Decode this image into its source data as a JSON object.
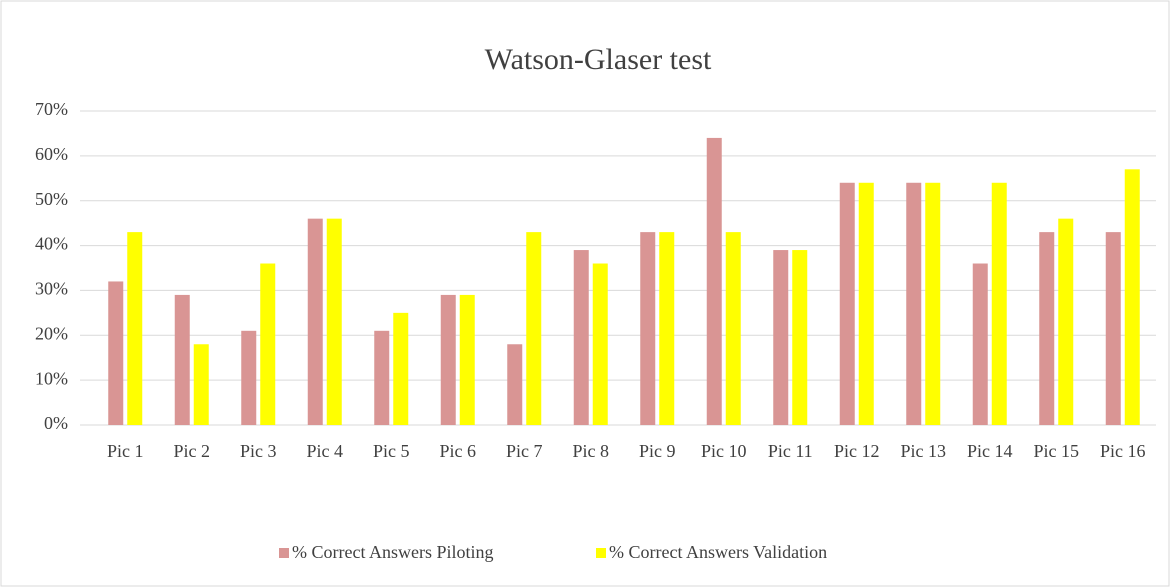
{
  "chart_data": {
    "type": "bar",
    "title": "Watson-Glaser test",
    "categories": [
      "Pic 1",
      "Pic 2",
      "Pic 3",
      "Pic 4",
      "Pic 5",
      "Pic 6",
      "Pic 7",
      "Pic 8",
      "Pic 9",
      "Pic 10",
      "Pic 11",
      "Pic 12",
      "Pic 13",
      "Pic 14",
      "Pic 15",
      "Pic 16"
    ],
    "series": [
      {
        "name": "% Correct Answers Piloting",
        "color": "#d99594",
        "values": [
          32,
          29,
          21,
          46,
          21,
          29,
          18,
          39,
          43,
          64,
          39,
          54,
          54,
          36,
          43,
          43
        ]
      },
      {
        "name": "% Correct Answers Validation",
        "color": "#ffff00",
        "values": [
          43,
          18,
          36,
          46,
          25,
          29,
          43,
          36,
          43,
          43,
          39,
          54,
          54,
          54,
          46,
          57
        ]
      }
    ],
    "ylim": [
      0,
      70
    ],
    "yticks": [
      {
        "value": 0,
        "label": "0%"
      },
      {
        "value": 10,
        "label": "10%"
      },
      {
        "value": 20,
        "label": "20%"
      },
      {
        "value": 30,
        "label": "30%"
      },
      {
        "value": 40,
        "label": "40%"
      },
      {
        "value": 50,
        "label": "50%"
      },
      {
        "value": 60,
        "label": "60%"
      },
      {
        "value": 70,
        "label": "70%"
      }
    ],
    "grid": true,
    "legend": "bottom"
  }
}
